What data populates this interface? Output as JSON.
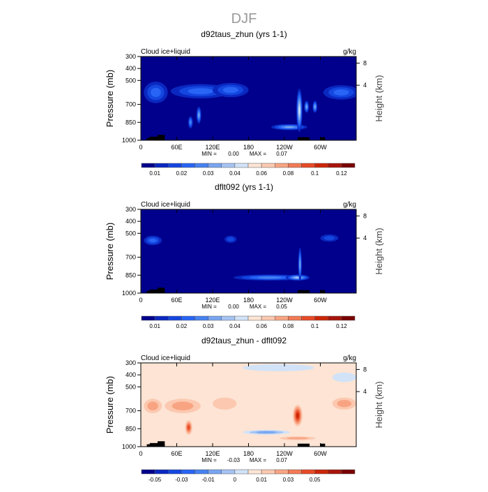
{
  "chart_data": {
    "type": "heatmap",
    "title": "DJF",
    "palette": [
      "#00008c",
      "#0a28c0",
      "#1446e0",
      "#2864f5",
      "#4682f0",
      "#78a5f0",
      "#a5c3f3",
      "#d2e3f8",
      "#fde4d4",
      "#fcc8b0",
      "#f8a482",
      "#f27a55",
      "#e84a26",
      "#cc2608",
      "#a8140a",
      "#7a0000"
    ],
    "xticks": [
      "0",
      "60E",
      "120E",
      "180",
      "120W",
      "60W"
    ],
    "xtick_values": [
      0,
      60,
      120,
      180,
      240,
      300
    ],
    "xlim": [
      0,
      360
    ],
    "yticks": [
      "300",
      "400",
      "500",
      "700",
      "850",
      "1000"
    ],
    "ytick_values": [
      300,
      400,
      500,
      700,
      850,
      1000
    ],
    "ylim": [
      1000,
      300
    ],
    "ylabel": "Pressure (mb)",
    "y2label": "Height (km)",
    "y2ticks": [
      "8",
      "4"
    ],
    "y2tick_pressures": [
      355,
      540
    ],
    "panels": [
      {
        "title": "d92taus_zhun (yrs 1-1)",
        "left_label": "Cloud ice+liquid",
        "right_label": "g/kg",
        "min_label": "MIN =",
        "min": "0.00",
        "max_label": "MAX =",
        "max": "0.07",
        "background_level": 0,
        "colorbar_labels": [
          "0.01",
          "0.02",
          "0.03",
          "0.04",
          "0.06",
          "0.08",
          "0.1",
          "0.12"
        ],
        "features": [
          [
            25,
            600,
            20,
            90,
            3
          ],
          [
            100,
            590,
            50,
            60,
            3
          ],
          [
            150,
            580,
            30,
            60,
            3
          ],
          [
            335,
            600,
            30,
            60,
            3
          ],
          [
            83,
            850,
            4,
            50,
            4
          ],
          [
            97,
            790,
            4,
            70,
            5
          ],
          [
            248,
            890,
            30,
            25,
            5
          ],
          [
            265,
            750,
            5,
            180,
            7
          ],
          [
            277,
            720,
            4,
            50,
            5
          ],
          [
            291,
            720,
            4,
            50,
            5
          ]
        ]
      },
      {
        "title": "dflt092 (yrs 1-1)",
        "left_label": "Cloud ice+liquid",
        "right_label": "g/kg",
        "min_label": "MIN =",
        "min": "0.00",
        "max_label": "MAX =",
        "max": "0.05",
        "background_level": 0,
        "colorbar_labels": [
          "0.01",
          "0.02",
          "0.03",
          "0.04",
          "0.06",
          "0.08",
          "0.1",
          "0.12"
        ],
        "features": [
          [
            20,
            560,
            15,
            40,
            3
          ],
          [
            150,
            550,
            10,
            30,
            2
          ],
          [
            315,
            540,
            15,
            30,
            2
          ],
          [
            215,
            870,
            60,
            25,
            4
          ],
          [
            262,
            870,
            20,
            25,
            6
          ],
          [
            266,
            760,
            3,
            140,
            5
          ]
        ]
      },
      {
        "title": "d92taus_zhun - dflt092",
        "left_label": "Cloud ice+liquid",
        "right_label": "g/kg",
        "min_label": "MIN =",
        "min": "-0.03",
        "max_label": "MAX =",
        "max": "0.07",
        "background_level": 8,
        "colorbar_labels": [
          "-0.05",
          "-0.03",
          "-0.01",
          "0",
          "0.01",
          "0.03",
          "0.05"
        ],
        "features": [
          [
            20,
            660,
            15,
            60,
            10
          ],
          [
            70,
            660,
            30,
            60,
            10
          ],
          [
            140,
            640,
            20,
            50,
            9
          ],
          [
            80,
            840,
            6,
            60,
            12
          ],
          [
            210,
            880,
            40,
            20,
            5
          ],
          [
            262,
            740,
            8,
            90,
            13
          ],
          [
            340,
            640,
            20,
            50,
            10
          ],
          [
            262,
            930,
            30,
            15,
            10
          ],
          [
            230,
            340,
            60,
            30,
            7
          ],
          [
            340,
            420,
            20,
            40,
            7
          ]
        ]
      }
    ]
  }
}
